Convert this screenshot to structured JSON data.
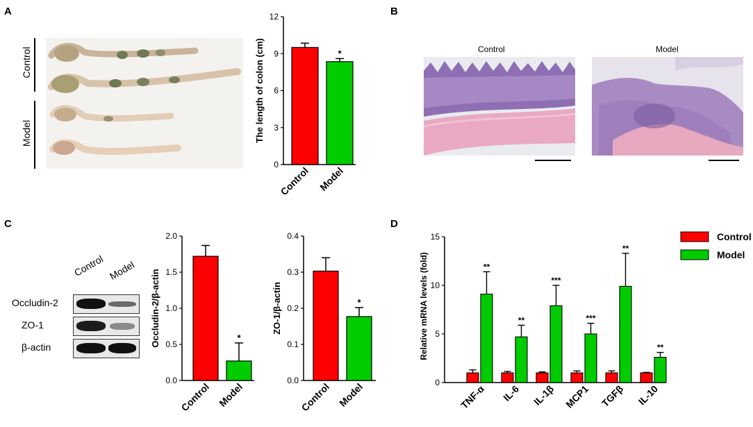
{
  "panels": {
    "A": {
      "letter": "A",
      "photo_labels": {
        "control": "Control",
        "model": "Model"
      },
      "colon_svg": "colon-length-chart"
    },
    "B": {
      "letter": "B",
      "control_title": "Control",
      "model_title": "Model"
    },
    "C": {
      "letter": "C",
      "lanes": [
        "Control",
        "Model"
      ],
      "rows": [
        "Occludin-2",
        "ZO-1",
        "β-actin"
      ]
    },
    "D": {
      "letter": "D"
    }
  },
  "colors": {
    "control": "#ff0000",
    "model": "#00cc00",
    "outline": "#000000"
  },
  "chart_data": [
    {
      "id": "colon-length",
      "type": "bar",
      "categories": [
        "Control",
        "Model"
      ],
      "values": [
        9.5,
        8.35
      ],
      "errors": [
        0.35,
        0.25
      ],
      "significance": [
        "",
        "*"
      ],
      "ylabel": "The length of colon (cm)",
      "ylim": [
        0,
        12
      ],
      "yticks": [
        0,
        3,
        6,
        9,
        12
      ],
      "yticklabels": [
        "0",
        "3",
        "6",
        "9",
        "12"
      ]
    },
    {
      "id": "occludin",
      "type": "bar",
      "categories": [
        "Control",
        "Model"
      ],
      "values": [
        1.72,
        0.27
      ],
      "errors": [
        0.15,
        0.25
      ],
      "significance": [
        "",
        "*"
      ],
      "ylabel": "Occludin-2/β-actin",
      "ylim": [
        0,
        2.0
      ],
      "yticks": [
        0,
        0.5,
        1.0,
        1.5,
        2.0
      ],
      "yticklabels": [
        "0.0",
        "0.5",
        "1.0",
        "1.5",
        "2.0"
      ]
    },
    {
      "id": "zo1",
      "type": "bar",
      "categories": [
        "Control",
        "Model"
      ],
      "values": [
        0.303,
        0.177
      ],
      "errors": [
        0.037,
        0.025
      ],
      "significance": [
        "",
        "*"
      ],
      "ylabel": "ZO-1/β-actin",
      "ylim": [
        0,
        0.4
      ],
      "yticks": [
        0,
        0.1,
        0.2,
        0.3,
        0.4
      ],
      "yticklabels": [
        "0.0",
        "0.1",
        "0.2",
        "0.3",
        "0.4"
      ]
    },
    {
      "id": "mrna",
      "type": "bar",
      "categories": [
        "TNF-α",
        "IL-6",
        "IL-1β",
        "MCP1",
        "TGFβ",
        "IL-10"
      ],
      "series": [
        {
          "name": "Control",
          "values": [
            1.0,
            1.0,
            1.0,
            1.0,
            1.0,
            1.0
          ],
          "errors": [
            0.3,
            0.15,
            0.1,
            0.2,
            0.2,
            0.05
          ]
        },
        {
          "name": "Model",
          "values": [
            9.1,
            4.7,
            7.9,
            5.0,
            9.9,
            2.6
          ],
          "errors": [
            2.3,
            1.2,
            2.1,
            1.1,
            3.4,
            0.5
          ]
        }
      ],
      "significance": [
        "**",
        "**",
        "***",
        "***",
        "**",
        "**"
      ],
      "ylabel": "Relative mRNA levels (fold)",
      "ylim": [
        0,
        15
      ],
      "yticks": [
        0,
        5,
        10,
        15
      ],
      "yticklabels": [
        "0",
        "5",
        "10",
        "15"
      ],
      "legend": "top-right"
    }
  ]
}
